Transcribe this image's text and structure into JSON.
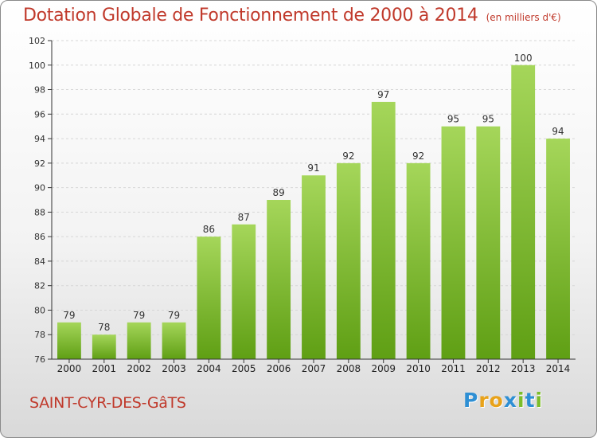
{
  "header": {
    "title": "Dotation Globale de Fonctionnement de 2000 à 2014",
    "subtitle": "(en milliers d'€)"
  },
  "footer": {
    "commune": "SAINT-CYR-DES-GâTS",
    "brand_letters": [
      "P",
      "r",
      "o",
      "x",
      "i",
      "t",
      "i"
    ],
    "brand_colors": [
      "#2e8fd4",
      "#e8a21a",
      "#e8a21a",
      "#2e8fd4",
      "#7cbd2a",
      "#2e8fd4",
      "#7cbd2a"
    ]
  },
  "colors": {
    "bar_top": "#a5d65a",
    "bar_bottom": "#5f9f14",
    "grid": "#d6d6d6",
    "axis": "#333333"
  },
  "chart_data": {
    "type": "bar",
    "title": "Dotation Globale de Fonctionnement de 2000 à 2014",
    "subtitle": "(en milliers d'€)",
    "categories": [
      "2000",
      "2001",
      "2002",
      "2003",
      "2004",
      "2005",
      "2006",
      "2007",
      "2008",
      "2009",
      "2010",
      "2011",
      "2012",
      "2013",
      "2014"
    ],
    "values": [
      79,
      78,
      79,
      79,
      86,
      87,
      89,
      91,
      92,
      97,
      92,
      95,
      95,
      100,
      94
    ],
    "ylim": [
      76,
      102
    ],
    "yticks": [
      76,
      78,
      80,
      82,
      84,
      86,
      88,
      90,
      92,
      94,
      96,
      98,
      100,
      102
    ],
    "grid": true,
    "data_labels": true
  }
}
